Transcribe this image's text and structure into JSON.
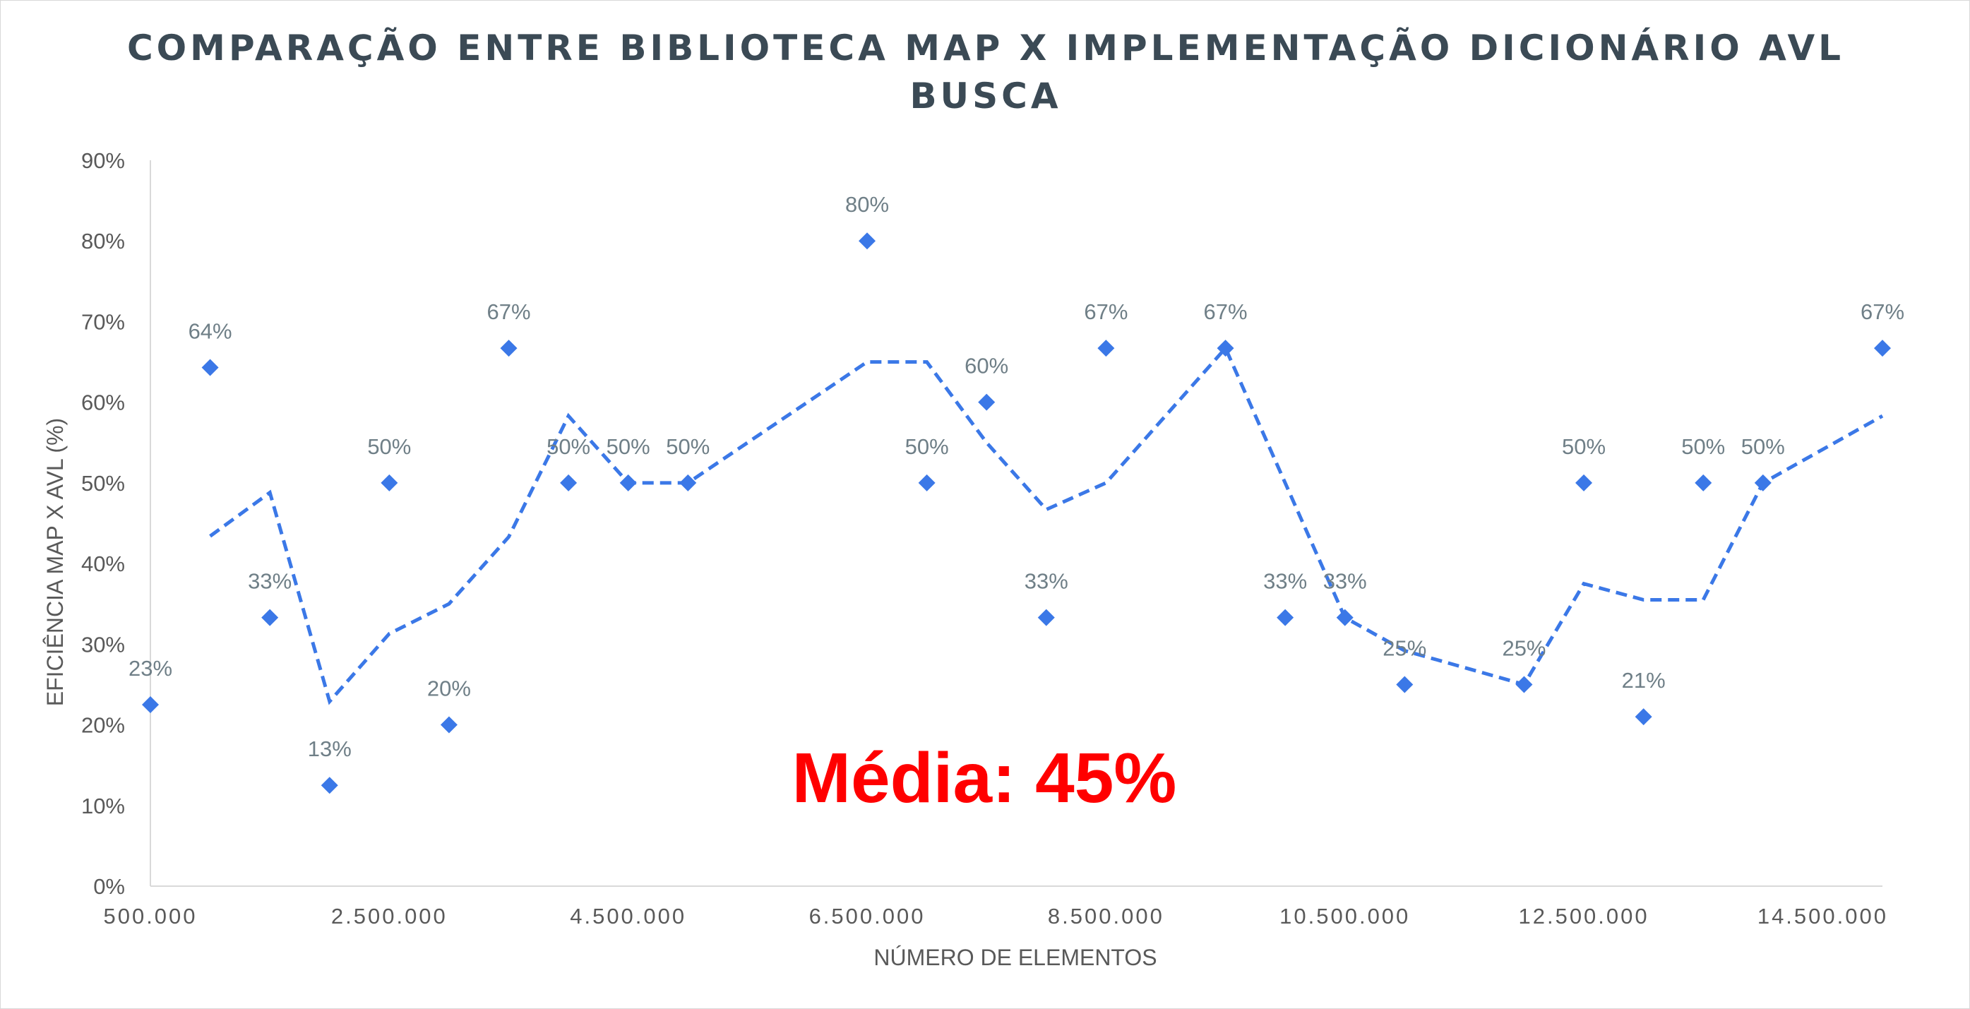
{
  "chart_data": {
    "type": "scatter",
    "title_lines": [
      "COMPARAÇÃO ENTRE BIBLIOTECA MAP X IMPLEMENTAÇÃO DICIONÁRIO AVL",
      "BUSCA"
    ],
    "xlabel": "NÚMERO DE ELEMENTOS",
    "ylabel": "EFICIÊNCIA MAP X AVL (%)",
    "xlim": [
      500000,
      15000000
    ],
    "ylim": [
      0,
      0.9
    ],
    "x_tick_values": [
      500000,
      2500000,
      4500000,
      6500000,
      8500000,
      10500000,
      12500000,
      14500000
    ],
    "x_tick_labels": [
      "500.000",
      "2.500.000",
      "4.500.000",
      "6.500.000",
      "8.500.000",
      "10.500.000",
      "12.500.000",
      "14.500.000"
    ],
    "y_tick_values": [
      0,
      0.1,
      0.2,
      0.3,
      0.4,
      0.5,
      0.6,
      0.7,
      0.8,
      0.9
    ],
    "y_tick_labels": [
      "0%",
      "10%",
      "20%",
      "30%",
      "40%",
      "50%",
      "60%",
      "70%",
      "80%",
      "90%"
    ],
    "grid": false,
    "series": [
      {
        "marker": "diamond",
        "color": "#3b78e7",
        "points": [
          {
            "x": 500000,
            "y": 0.225,
            "label": "23%"
          },
          {
            "x": 1000000,
            "y": 0.643,
            "label": "64%"
          },
          {
            "x": 1500000,
            "y": 0.333,
            "label": "33%"
          },
          {
            "x": 2000000,
            "y": 0.125,
            "label": "13%"
          },
          {
            "x": 2500000,
            "y": 0.5,
            "label": "50%"
          },
          {
            "x": 3000000,
            "y": 0.2,
            "label": "20%"
          },
          {
            "x": 3500000,
            "y": 0.667,
            "label": "67%"
          },
          {
            "x": 4000000,
            "y": 0.5,
            "label": "50%"
          },
          {
            "x": 4500000,
            "y": 0.5,
            "label": "50%"
          },
          {
            "x": 5000000,
            "y": 0.5,
            "label": "50%"
          },
          {
            "x": 6500000,
            "y": 0.8,
            "label": "80%"
          },
          {
            "x": 7000000,
            "y": 0.5,
            "label": "50%"
          },
          {
            "x": 7500000,
            "y": 0.6,
            "label": "60%"
          },
          {
            "x": 8000000,
            "y": 0.333,
            "label": "33%"
          },
          {
            "x": 8500000,
            "y": 0.667,
            "label": "67%"
          },
          {
            "x": 9500000,
            "y": 0.667,
            "label": "67%"
          },
          {
            "x": 10000000,
            "y": 0.333,
            "label": "33%"
          },
          {
            "x": 10500000,
            "y": 0.333,
            "label": "33%"
          },
          {
            "x": 11000000,
            "y": 0.25,
            "label": "25%"
          },
          {
            "x": 12000000,
            "y": 0.25,
            "label": "25%"
          },
          {
            "x": 12500000,
            "y": 0.5,
            "label": "50%"
          },
          {
            "x": 13000000,
            "y": 0.21,
            "label": "21%"
          },
          {
            "x": 13500000,
            "y": 0.5,
            "label": "50%"
          },
          {
            "x": 14000000,
            "y": 0.5,
            "label": "50%"
          },
          {
            "x": 15000000,
            "y": 0.667,
            "label": "67%"
          }
        ]
      }
    ],
    "trendline": {
      "style": "dashed",
      "color": "#3b78e7",
      "points": [
        {
          "x": 1000000,
          "y": 0.434
        },
        {
          "x": 1500000,
          "y": 0.488
        },
        {
          "x": 2000000,
          "y": 0.229
        },
        {
          "x": 2500000,
          "y": 0.313
        },
        {
          "x": 3000000,
          "y": 0.35
        },
        {
          "x": 3500000,
          "y": 0.433
        },
        {
          "x": 4000000,
          "y": 0.583
        },
        {
          "x": 4500000,
          "y": 0.5
        },
        {
          "x": 5000000,
          "y": 0.5
        },
        {
          "x": 6500000,
          "y": 0.65
        },
        {
          "x": 7000000,
          "y": 0.65
        },
        {
          "x": 7500000,
          "y": 0.55
        },
        {
          "x": 8000000,
          "y": 0.467
        },
        {
          "x": 8500000,
          "y": 0.5
        },
        {
          "x": 9500000,
          "y": 0.667
        },
        {
          "x": 10000000,
          "y": 0.5
        },
        {
          "x": 10500000,
          "y": 0.333
        },
        {
          "x": 11000000,
          "y": 0.292
        },
        {
          "x": 12000000,
          "y": 0.25
        },
        {
          "x": 12500000,
          "y": 0.375
        },
        {
          "x": 13000000,
          "y": 0.355
        },
        {
          "x": 13500000,
          "y": 0.355
        },
        {
          "x": 14000000,
          "y": 0.5
        },
        {
          "x": 15000000,
          "y": 0.583
        }
      ]
    },
    "annotation": {
      "text": "Média: 45%",
      "color": "#ff0000"
    }
  }
}
